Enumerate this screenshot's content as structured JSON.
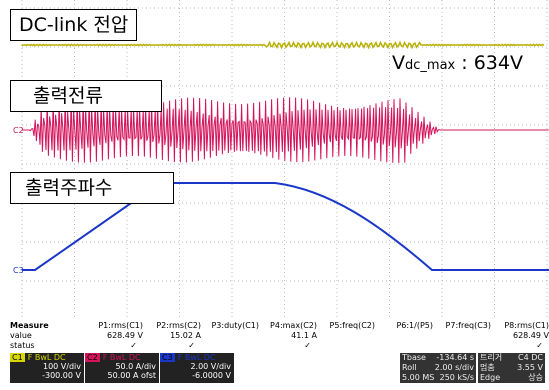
{
  "screen": {
    "labels": {
      "dc_link": "DC-link 전압",
      "vdc": {
        "prefix": "V",
        "subscript": "dc_max",
        "value": " : 634V"
      },
      "current": "출력전류",
      "frequency": "출력주파수"
    },
    "markers": {
      "c2": "C2",
      "c3": "C3"
    }
  },
  "measure": {
    "title": "Measure",
    "row_value": "value",
    "row_status": "status",
    "columns": [
      {
        "name": "P1:rms(C1)",
        "value": "628.49 V",
        "status": "✓"
      },
      {
        "name": "P2:rms(C2)",
        "value": "15.02 A",
        "status": "✓"
      },
      {
        "name": "P3:duty(C1)"
      },
      {
        "name": "P4:max(C2)",
        "value": "41.1 A",
        "status": "✓"
      },
      {
        "name": "P5:freq(C2)"
      },
      {
        "name": "P6:1/(P5)"
      },
      {
        "name": "P7:freq(C3)"
      },
      {
        "name": "P8:rms(C1)",
        "value": "628.49 V",
        "status": "✓"
      }
    ]
  },
  "channels": [
    {
      "id": "C1",
      "flags": "F BwL DC",
      "scale": "100 V/div",
      "offset": "-300.00 V"
    },
    {
      "id": "C2",
      "flags": "F BwL DC",
      "scale": "50.0 A/div",
      "offset": "50.00 A ofst"
    },
    {
      "id": "C3",
      "flags": "F BwL DC",
      "scale": "2.00 V/div",
      "offset": "-6.0000 V"
    }
  ],
  "timebase": {
    "rows": [
      [
        "Tbase",
        "-134.64 s"
      ],
      [
        "Roll",
        "2.00 s/div"
      ],
      [
        "5.00 MS",
        "250 kS/s"
      ]
    ]
  },
  "trigger": {
    "rows": [
      [
        "트리거",
        "C4 DC"
      ],
      [
        "멈춤",
        "3.55 V"
      ],
      [
        "Edge",
        "상승"
      ]
    ]
  }
}
